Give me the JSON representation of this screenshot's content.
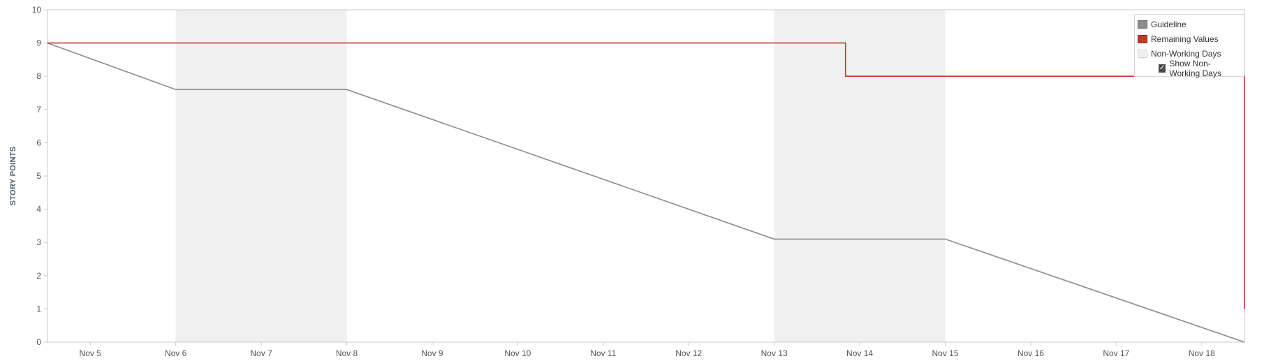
{
  "chart_data": {
    "type": "line",
    "title": "",
    "xlabel": "",
    "ylabel": "STORY POINTS",
    "ylim": [
      0,
      10
    ],
    "yticks": [
      "0",
      "1",
      "2",
      "3",
      "4",
      "5",
      "6",
      "7",
      "8",
      "9",
      "10"
    ],
    "x_ticks": [
      "Nov 5",
      "Nov 6",
      "Nov 7",
      "Nov 8",
      "Nov 9",
      "Nov 10",
      "Nov 11",
      "Nov 12",
      "Nov 13",
      "Nov 14",
      "Nov 15",
      "Nov 16",
      "Nov 17",
      "Nov 18"
    ],
    "xlim": [
      "Nov 4 12:00",
      "Nov 18 12:00"
    ],
    "non_working_days": [
      [
        "Nov 6",
        "Nov 8"
      ],
      [
        "Nov 13",
        "Nov 15"
      ]
    ],
    "series": [
      {
        "name": "Guideline",
        "color": "#8c8c8c",
        "points": [
          [
            "Nov 4 12:00",
            9
          ],
          [
            "Nov 6",
            7.6
          ],
          [
            "Nov 8",
            7.6
          ],
          [
            "Nov 13",
            3.1
          ],
          [
            "Nov 15",
            3.1
          ],
          [
            "Nov 18 12:00",
            0
          ]
        ]
      },
      {
        "name": "Remaining Values",
        "color": "#c0392b",
        "step": true,
        "points": [
          [
            "Nov 4 12:00",
            9
          ],
          [
            "Nov 13 20:00",
            9
          ],
          [
            "Nov 13 20:00",
            8
          ],
          [
            "Nov 18 12:00",
            8
          ],
          [
            "Nov 18 12:00",
            1
          ]
        ]
      }
    ],
    "legend": {
      "position": "top-right",
      "items": [
        {
          "label": "Guideline",
          "color": "#8c8c8c"
        },
        {
          "label": "Remaining Values",
          "color": "#c0392b"
        },
        {
          "label": "Non-Working Days",
          "color": "#f0f0f0"
        }
      ],
      "checkbox_label": "Show Non-Working Days",
      "checkbox_checked": true
    },
    "grid": false
  }
}
